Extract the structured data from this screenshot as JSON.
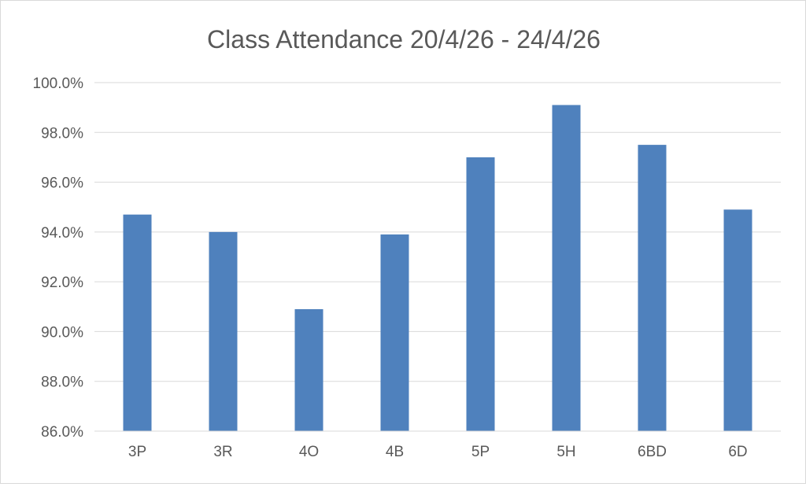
{
  "chart_data": {
    "type": "bar",
    "title": "Class Attendance 20/4/26 - 24/4/26",
    "xlabel": "",
    "ylabel": "",
    "categories": [
      "3P",
      "3R",
      "4O",
      "4B",
      "5P",
      "5H",
      "6BD",
      "6D"
    ],
    "values": [
      94.7,
      94.0,
      90.9,
      93.9,
      97.0,
      99.1,
      97.5,
      94.9
    ],
    "value_format": "percent",
    "ylim": [
      86.0,
      100.0
    ],
    "yticks": [
      86.0,
      88.0,
      90.0,
      92.0,
      94.0,
      96.0,
      98.0,
      100.0
    ],
    "ytick_labels": [
      "86.0%",
      "88.0%",
      "90.0%",
      "92.0%",
      "94.0%",
      "96.0%",
      "98.0%",
      "100.0%"
    ],
    "grid": true,
    "legend": "none",
    "colors": {
      "bar": "#4f81bd",
      "grid": "#d9d9d9",
      "text": "#595959"
    }
  }
}
